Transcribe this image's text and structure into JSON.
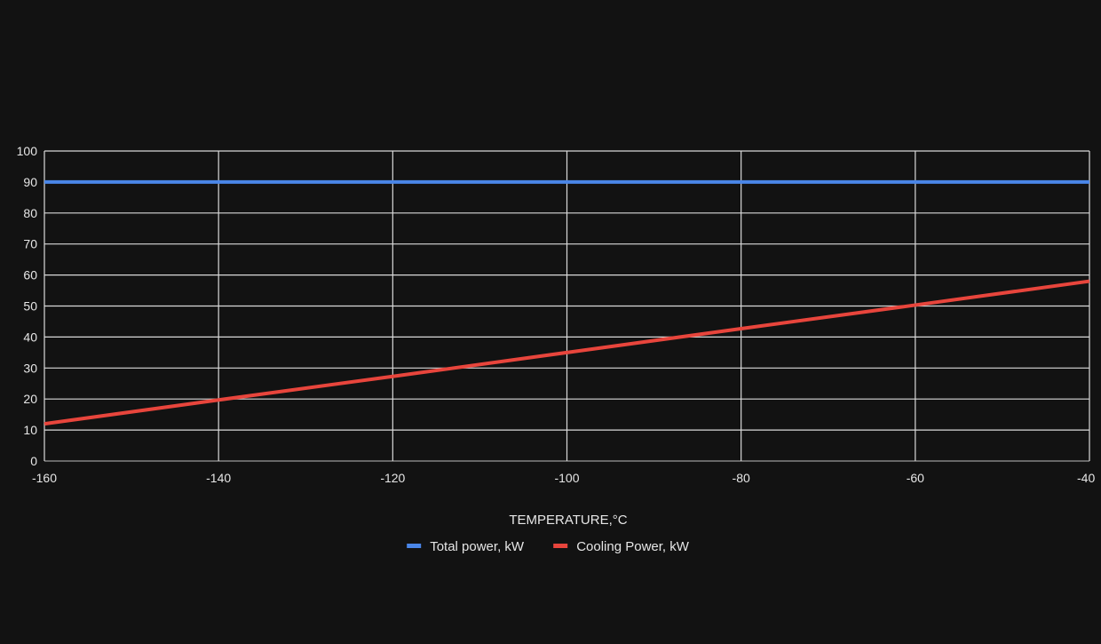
{
  "chart_data": {
    "type": "line",
    "title": "",
    "xlabel": "TEMPERATURE,°C",
    "ylabel": "",
    "xlim": [
      -160,
      -40
    ],
    "ylim": [
      0,
      100
    ],
    "x_ticks": [
      -160,
      -140,
      -120,
      -100,
      -80,
      -60,
      -40
    ],
    "y_ticks": [
      0,
      10,
      20,
      30,
      40,
      50,
      60,
      70,
      80,
      90,
      100
    ],
    "grid": true,
    "legend_position": "bottom",
    "series": [
      {
        "name": "Total power, kW",
        "color": "#4a86e8",
        "x": [
          -160,
          -140,
          -120,
          -100,
          -80,
          -60,
          -40
        ],
        "y": [
          90,
          90,
          90,
          90,
          90,
          90,
          90
        ]
      },
      {
        "name": "Cooling Power, kW",
        "color": "#e8453c",
        "x": [
          -160,
          -140,
          -120,
          -100,
          -80,
          -60,
          -40
        ],
        "y": [
          12,
          19.7,
          27.3,
          35,
          42.7,
          50.3,
          58
        ]
      }
    ]
  }
}
